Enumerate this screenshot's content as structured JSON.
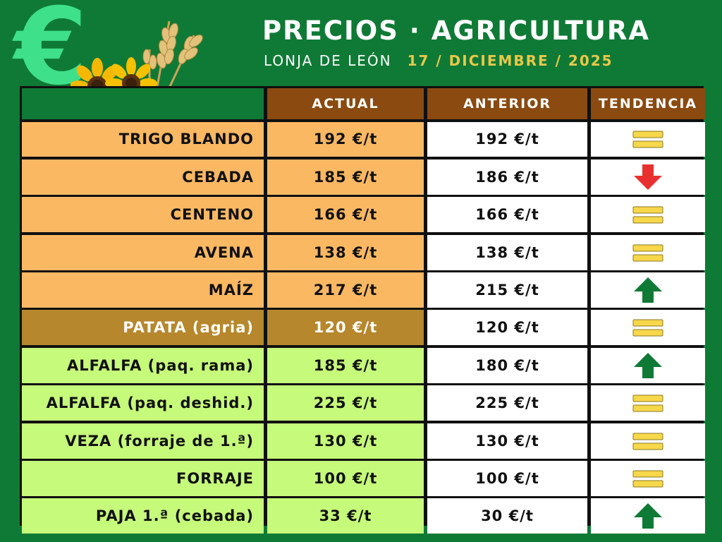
{
  "header": {
    "title": "PRECIOS · AGRICULTURA",
    "market": "LONJA DE LEÓN",
    "date": "17 / DICIEMBRE / 2025",
    "euro_symbol": "€"
  },
  "table": {
    "columns": [
      "ACTUAL",
      "ANTERIOR",
      "TENDENCIA"
    ],
    "rows": [
      {
        "product": "TRIGO BLANDO",
        "actual": "192 €/t",
        "anterior": "192 €/t",
        "trend": "equal",
        "group": "cereal"
      },
      {
        "product": "CEBADA",
        "actual": "185 €/t",
        "anterior": "186 €/t",
        "trend": "down",
        "group": "cereal"
      },
      {
        "product": "CENTENO",
        "actual": "166 €/t",
        "anterior": "166 €/t",
        "trend": "equal",
        "group": "cereal"
      },
      {
        "product": "AVENA",
        "actual": "138 €/t",
        "anterior": "138 €/t",
        "trend": "equal",
        "group": "cereal"
      },
      {
        "product": "MAÍZ",
        "actual": "217 €/t",
        "anterior": "215 €/t",
        "trend": "up",
        "group": "cereal"
      },
      {
        "product": "PATATA (agria)",
        "actual": "120 €/t",
        "anterior": "120 €/t",
        "trend": "equal",
        "group": "potato"
      },
      {
        "product": "ALFALFA (paq. rama)",
        "actual": "185 €/t",
        "anterior": "180 €/t",
        "trend": "up",
        "group": "forage"
      },
      {
        "product": "ALFALFA (paq. deshid.)",
        "actual": "225 €/t",
        "anterior": "225 €/t",
        "trend": "equal",
        "group": "forage"
      },
      {
        "product": "VEZA (forraje de 1.ª)",
        "actual": "130 €/t",
        "anterior": "130 €/t",
        "trend": "equal",
        "group": "forage"
      },
      {
        "product": "FORRAJE",
        "actual": "100 €/t",
        "anterior": "100 €/t",
        "trend": "equal",
        "group": "forage"
      },
      {
        "product": "PAJA 1.ª (cebada)",
        "actual": "33 €/t",
        "anterior": "30 €/t",
        "trend": "up",
        "group": "forage"
      }
    ]
  },
  "colors": {
    "background": "#0f7a35",
    "header_cell": "#8a4a10",
    "cereal": "#fbb863",
    "potato": "#b6872c",
    "forage": "#c6fa7a",
    "trend_up": "#0f7a35",
    "trend_down": "#e83030",
    "trend_equal": "#f7d84a"
  },
  "icons": {
    "trend_up": "arrow-up-icon",
    "trend_down": "arrow-down-icon",
    "trend_equal": "equal-icon",
    "euro": "euro-icon",
    "decoration": "sunflower-wheat-icon"
  }
}
